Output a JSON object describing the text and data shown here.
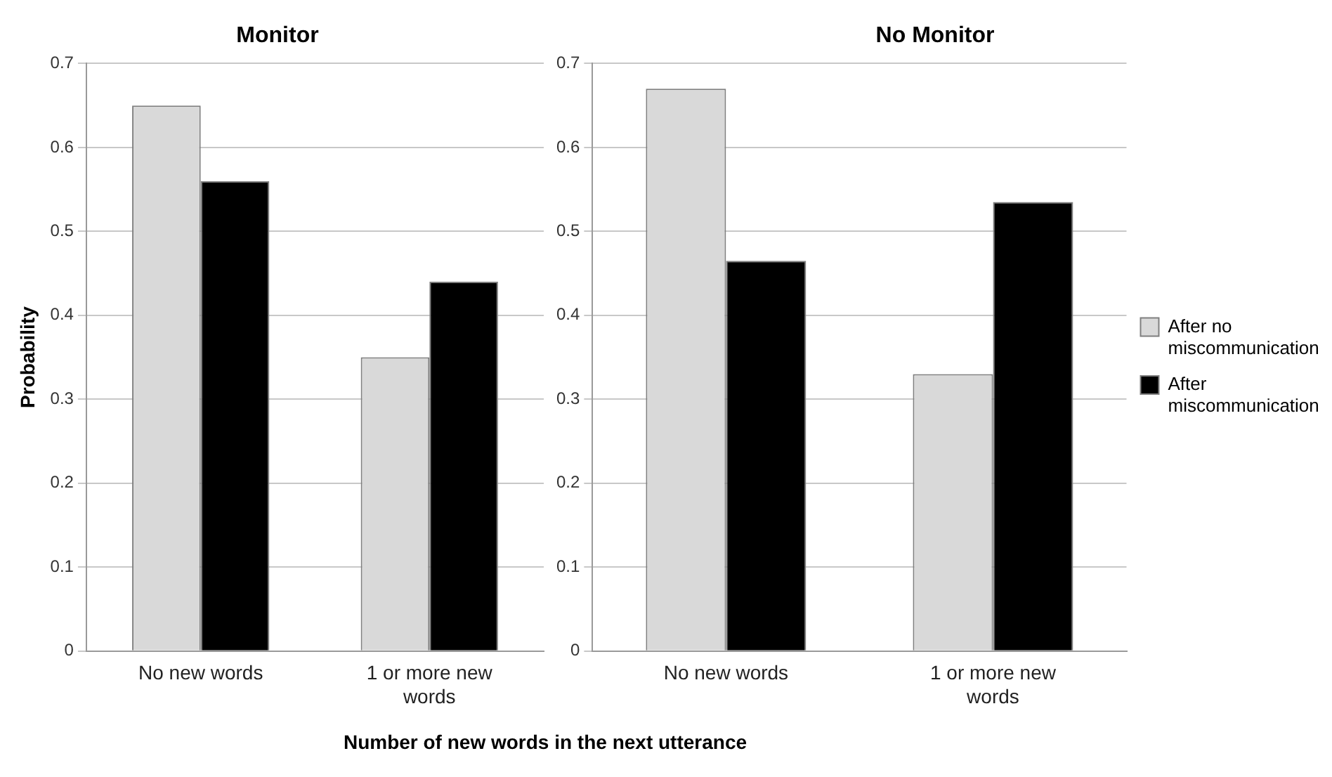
{
  "chart_data": [
    {
      "type": "bar",
      "title": "Monitor",
      "ylabel": "Probability",
      "xlabel": "Number of new words in the next utterance",
      "categories": [
        "No new words",
        "1 or more new words"
      ],
      "series": [
        {
          "color": "#d9d9d9",
          "values": [
            0.65,
            0.35
          ]
        },
        {
          "color": "#000000",
          "values": [
            0.56,
            0.44
          ]
        }
      ],
      "ylim": [
        0,
        0.7
      ],
      "yticks": [
        0,
        0.1,
        0.2,
        0.3,
        0.4,
        0.5,
        0.6,
        0.7
      ],
      "grid": "y",
      "legend": false
    },
    {
      "type": "bar",
      "title": "No Monitor",
      "categories": [
        "No new words",
        "1 or more new words"
      ],
      "series": [
        {
          "name": "After no miscommunication",
          "color": "#d9d9d9",
          "values": [
            0.67,
            0.33
          ]
        },
        {
          "name": "After miscommunication",
          "color": "#000000",
          "values": [
            0.465,
            0.535
          ]
        }
      ],
      "ylim": [
        0,
        0.7
      ],
      "yticks": [
        0,
        0.1,
        0.2,
        0.3,
        0.4,
        0.5,
        0.6,
        0.7
      ],
      "grid": "y",
      "legend": "right"
    }
  ]
}
